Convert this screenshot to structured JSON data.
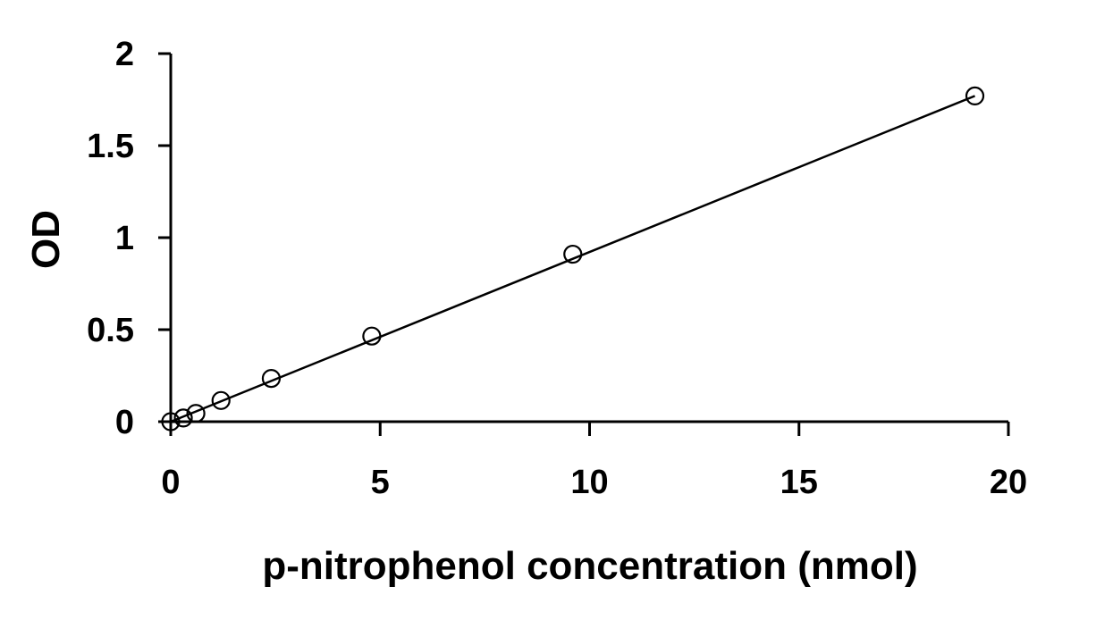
{
  "chart_data": {
    "type": "scatter",
    "title": "",
    "xlabel": "p-nitrophenol concentration (nmol)",
    "ylabel": "OD",
    "xlim": [
      0,
      20
    ],
    "ylim": [
      0,
      2
    ],
    "xticks": [
      0,
      5,
      10,
      15,
      20
    ],
    "yticks": [
      0,
      0.5,
      1,
      1.5,
      2
    ],
    "xtick_labels": [
      "0",
      "5",
      "10",
      "15",
      "20"
    ],
    "ytick_labels": [
      "0",
      "0.5",
      "1",
      "1.5",
      "2"
    ],
    "grid": false,
    "legend": "none",
    "series": [
      {
        "x": [
          0,
          0.3,
          0.6,
          1.2,
          2.4,
          4.8,
          9.6,
          19.2
        ],
        "y": [
          0.0,
          0.02,
          0.045,
          0.115,
          0.235,
          0.465,
          0.91,
          1.77
        ],
        "marker": "open-circle",
        "color": "#000000"
      }
    ],
    "trendline": {
      "type": "linear",
      "x": [
        0,
        19.2
      ],
      "y": [
        0.0,
        1.77
      ],
      "color": "#000000"
    }
  }
}
